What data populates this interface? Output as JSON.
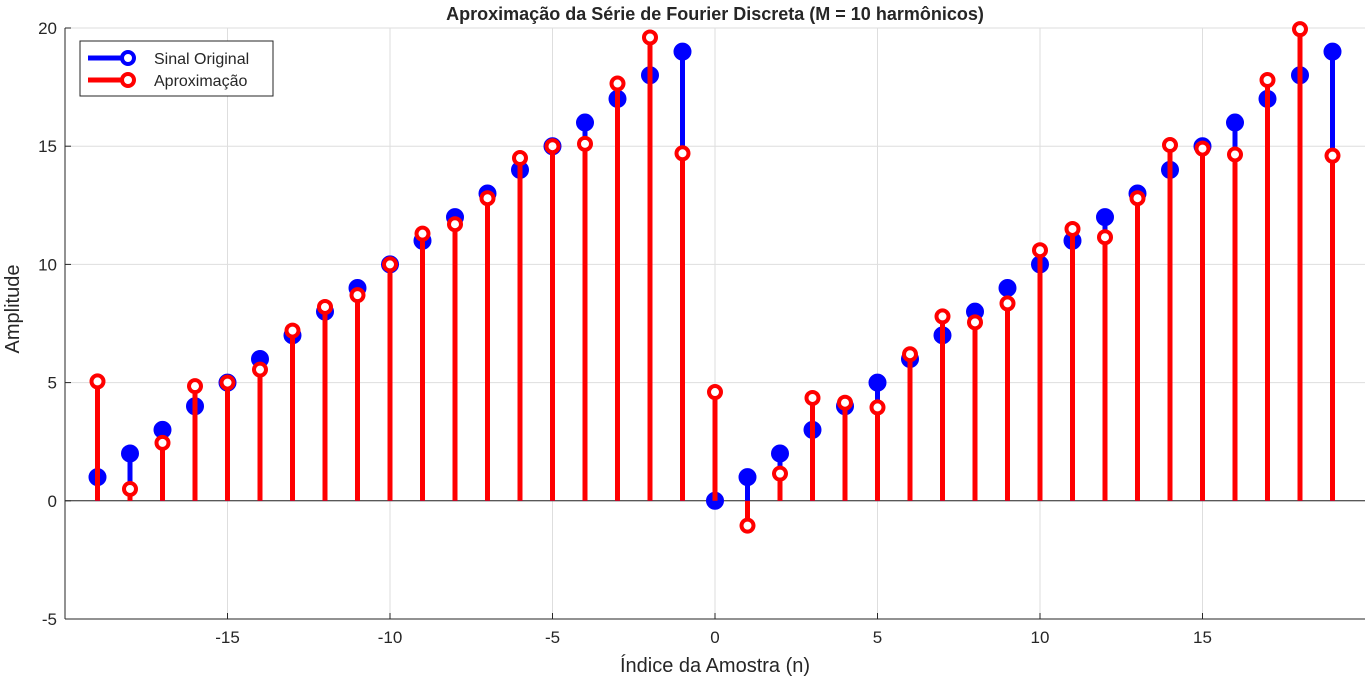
{
  "chart_data": {
    "type": "stem",
    "title": "Aproximação da Série de Fourier Discreta (M = 10 harmônicos)",
    "xlabel": "Índice da Amostra (n)",
    "ylabel": "Amplitude",
    "xlim": [
      -20,
      20
    ],
    "ylim": [
      -5,
      20
    ],
    "xticks": [
      -15,
      -10,
      -5,
      0,
      5,
      10,
      15
    ],
    "yticks": [
      -5,
      0,
      5,
      10,
      15,
      20
    ],
    "grid": true,
    "legend_position": "top-left",
    "x": [
      -19,
      -18,
      -17,
      -16,
      -15,
      -14,
      -13,
      -12,
      -11,
      -10,
      -9,
      -8,
      -7,
      -6,
      -5,
      -4,
      -3,
      -2,
      -1,
      0,
      1,
      2,
      3,
      4,
      5,
      6,
      7,
      8,
      9,
      10,
      11,
      12,
      13,
      14,
      15,
      16,
      17,
      18,
      19
    ],
    "series": [
      {
        "name": "Sinal Original",
        "color": "#0000ff",
        "marker": "filled-circle",
        "values": [
          1,
          2,
          3,
          4,
          5,
          6,
          7,
          8,
          9,
          10,
          11,
          12,
          13,
          14,
          15,
          16,
          17,
          18,
          19,
          0,
          1,
          2,
          3,
          4,
          5,
          6,
          7,
          8,
          9,
          10,
          11,
          12,
          13,
          14,
          15,
          16,
          17,
          18,
          19
        ]
      },
      {
        "name": "Aproximação",
        "color": "#ff0000",
        "marker": "open-circle",
        "values": [
          5.05,
          0.5,
          2.45,
          4.85,
          5.0,
          5.55,
          7.2,
          8.2,
          8.7,
          10.0,
          11.3,
          11.7,
          12.8,
          14.5,
          15.0,
          15.1,
          17.65,
          19.6,
          14.7,
          4.6,
          -1.05,
          1.15,
          4.35,
          4.15,
          3.95,
          6.2,
          7.8,
          7.55,
          8.35,
          10.6,
          11.5,
          11.15,
          12.8,
          15.05,
          14.9,
          14.65,
          17.8,
          19.95,
          14.6
        ]
      }
    ]
  }
}
